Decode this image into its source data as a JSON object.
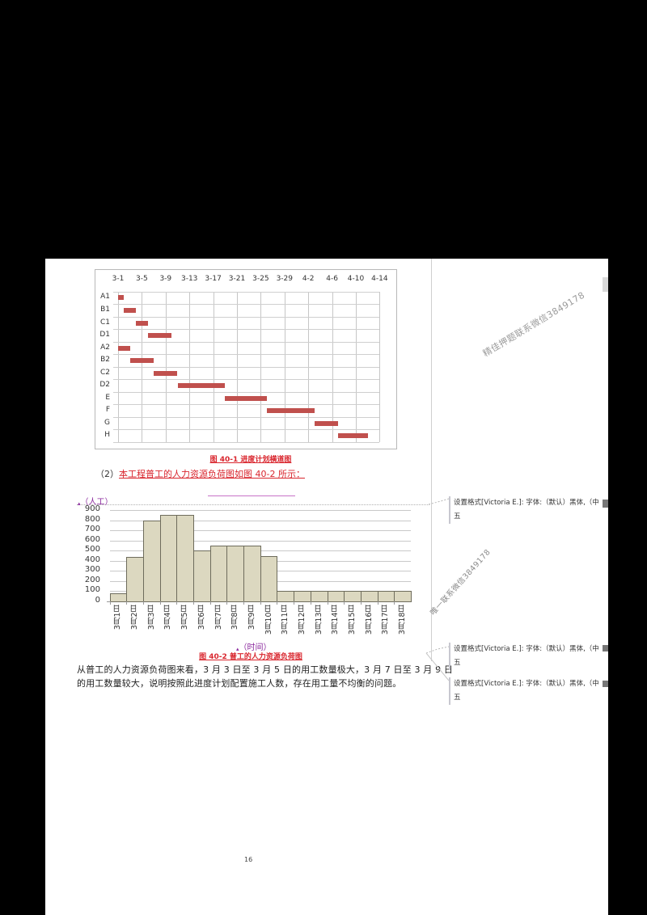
{
  "gantt": {
    "caption": "图 40-1  进度计划横道图"
  },
  "lead_in": {
    "number": "（2）",
    "text": "本工程普工的人力资源负荷图如图 40-2 所示："
  },
  "histogram": {
    "y_unit_label": "（人工）",
    "x_unit_label": "（时间）",
    "caption": "图 40-2  普工的人力资源负荷图"
  },
  "paragraph": {
    "line1": "从普工的人力资源负荷图来看，3 月 3 日至 3 月 5 日的用工数量极大，3 月 7 日至 3 月 9 日",
    "line2": "的用工数量较大，说明按照此进度计划配置施工人数，存在用工量不均衡的问题。"
  },
  "comments": [
    {
      "line1": "设置格式[Victoria E.]: 字体:（默认）黑体,（中",
      "line2": "五"
    },
    {
      "line1": "设置格式[Victoria E.]: 字体:（默认）黑体,（中",
      "line2": "五"
    },
    {
      "line1": "设置格式[Victoria E.]: 字体:（默认）黑体,（中",
      "line2": "五"
    }
  ],
  "watermarks": {
    "top": "精佳押题联系微信3849178",
    "middle": "唯一联系微信3849178"
  },
  "page_number": "16",
  "colors": {
    "gantt_bar": "#c0504d",
    "histogram_bar": "#dcd8c0",
    "caption_red": "#d9262e",
    "markup_purple": "#8b2a9e"
  },
  "chart_data": [
    {
      "type": "bar",
      "subtype": "gantt",
      "title": "图 40-1 进度计划横道图",
      "x_tick_labels": [
        "3-1",
        "3-5",
        "3-9",
        "3-13",
        "3-17",
        "3-21",
        "3-25",
        "3-29",
        "4-2",
        "4-6",
        "4-10",
        "4-14"
      ],
      "x_origin": "3-1",
      "x_range_days": [
        0,
        44
      ],
      "grid": true,
      "tasks": [
        {
          "name": "A1",
          "start": "3-1",
          "end": "3-2",
          "start_day": 0,
          "end_day": 1
        },
        {
          "name": "B1",
          "start": "3-2",
          "end": "3-4",
          "start_day": 1,
          "end_day": 3
        },
        {
          "name": "C1",
          "start": "3-4",
          "end": "3-6",
          "start_day": 3,
          "end_day": 5
        },
        {
          "name": "D1",
          "start": "3-6",
          "end": "3-10",
          "start_day": 5,
          "end_day": 9
        },
        {
          "name": "A2",
          "start": "3-1",
          "end": "3-3",
          "start_day": 0,
          "end_day": 2
        },
        {
          "name": "B2",
          "start": "3-3",
          "end": "3-7",
          "start_day": 2,
          "end_day": 6
        },
        {
          "name": "C2",
          "start": "3-7",
          "end": "3-11",
          "start_day": 6,
          "end_day": 10
        },
        {
          "name": "D2",
          "start": "3-11",
          "end": "3-19",
          "start_day": 10,
          "end_day": 18
        },
        {
          "name": "E",
          "start": "3-19",
          "end": "3-26",
          "start_day": 18,
          "end_day": 25
        },
        {
          "name": "F",
          "start": "3-26",
          "end": "4-3",
          "start_day": 25,
          "end_day": 33
        },
        {
          "name": "G",
          "start": "4-3",
          "end": "4-7",
          "start_day": 33,
          "end_day": 37
        },
        {
          "name": "H",
          "start": "4-7",
          "end": "4-12",
          "start_day": 37,
          "end_day": 42
        }
      ]
    },
    {
      "type": "bar",
      "title": "图 40-2 普工的人力资源负荷图",
      "xlabel": "（时间）",
      "ylabel": "（人工）",
      "ylim": [
        0,
        900
      ],
      "y_ticks": [
        0,
        100,
        200,
        300,
        400,
        500,
        600,
        700,
        800,
        900
      ],
      "grid": true,
      "categories": [
        "3月1日",
        "3月2日",
        "3月3日",
        "3月4日",
        "3月5日",
        "3月6日",
        "3月7日",
        "3月8日",
        "3月9日",
        "3月10日",
        "3月11日",
        "3月12日",
        "3月13日",
        "3月14日",
        "3月15日",
        "3月16日",
        "3月17日",
        "3月18日"
      ],
      "values": [
        80,
        440,
        800,
        850,
        850,
        500,
        550,
        550,
        550,
        450,
        100,
        100,
        100,
        100,
        100,
        100,
        100,
        100
      ]
    }
  ]
}
